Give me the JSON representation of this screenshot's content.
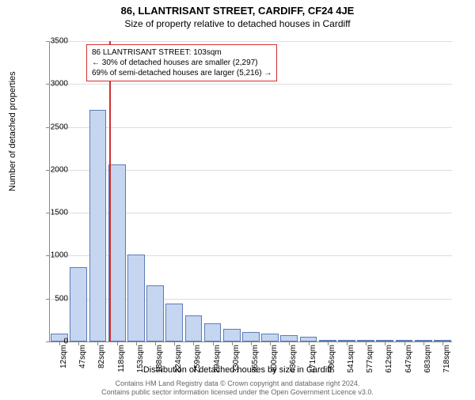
{
  "header": {
    "address": "86, LLANTRISANT STREET, CARDIFF, CF24 4JE",
    "subtitle": "Size of property relative to detached houses in Cardiff"
  },
  "chart": {
    "type": "histogram",
    "ylabel": "Number of detached properties",
    "xlabel": "Distribution of detached houses by size in Cardiff",
    "ylim": [
      0,
      3500
    ],
    "ytick_step": 500,
    "bar_fill": "#c6d6f0",
    "bar_border": "#5b7bb5",
    "grid_color": "#dddddd",
    "marker_color": "#d03030",
    "marker_value": 103,
    "categories": [
      "12sqm",
      "47sqm",
      "82sqm",
      "118sqm",
      "153sqm",
      "188sqm",
      "224sqm",
      "259sqm",
      "294sqm",
      "330sqm",
      "365sqm",
      "400sqm",
      "436sqm",
      "471sqm",
      "506sqm",
      "541sqm",
      "577sqm",
      "612sqm",
      "647sqm",
      "683sqm",
      "718sqm"
    ],
    "values": [
      90,
      870,
      2700,
      2060,
      1010,
      650,
      440,
      300,
      210,
      150,
      110,
      90,
      70,
      60,
      15,
      12,
      10,
      8,
      6,
      5,
      4
    ]
  },
  "annotation": {
    "line1": "86 LLANTRISANT STREET: 103sqm",
    "line2": "← 30% of detached houses are smaller (2,297)",
    "line3": "69% of semi-detached houses are larger (5,216) →"
  },
  "footer": {
    "line1": "Contains HM Land Registry data © Crown copyright and database right 2024.",
    "line2": "Contains public sector information licensed under the Open Government Licence v3.0."
  }
}
